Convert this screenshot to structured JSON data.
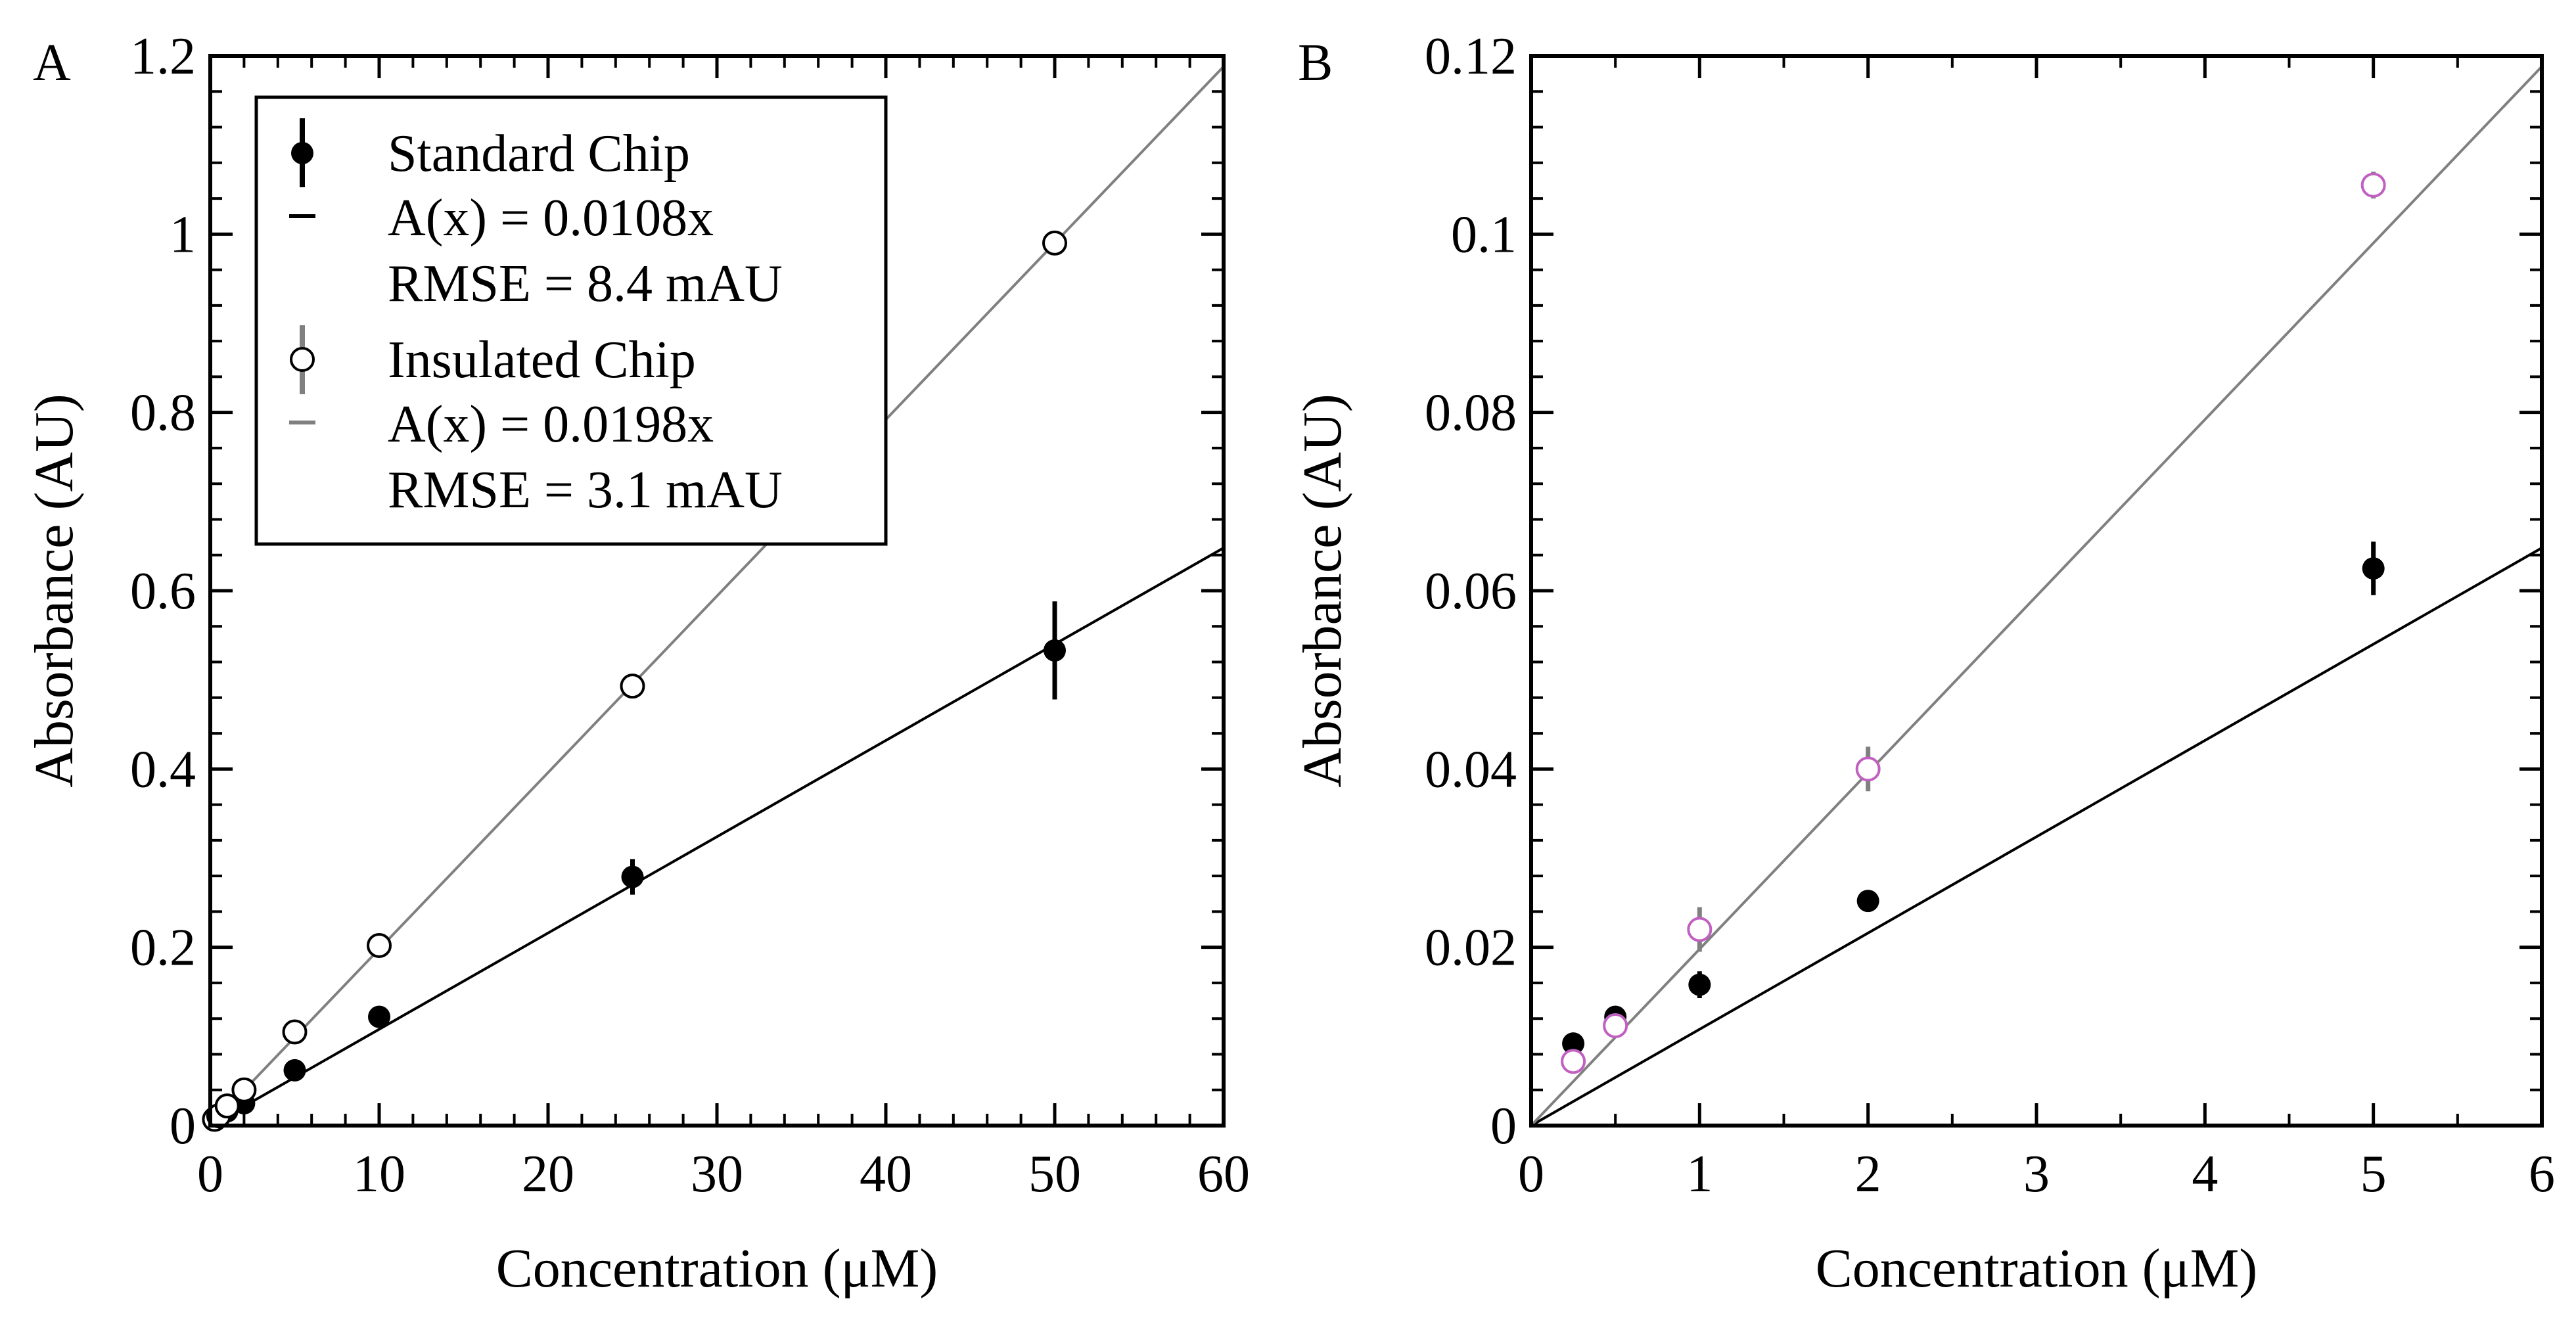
{
  "chart_data": [
    {
      "panel": "A",
      "type": "scatter",
      "xlabel": "Concentration (μM)",
      "ylabel": "Absorbance (AU)",
      "xlim": [
        0,
        60
      ],
      "ylim": [
        0,
        1.2
      ],
      "x_ticks": [
        0,
        10,
        20,
        30,
        40,
        50,
        60
      ],
      "y_ticks": [
        0,
        0.2,
        0.4,
        0.6,
        0.8,
        1.0,
        1.2
      ],
      "x_tick_labels": [
        "0",
        "10",
        "20",
        "30",
        "40",
        "50",
        "60"
      ],
      "y_tick_labels": [
        "0",
        "0.2",
        "0.4",
        "0.6",
        "0.8",
        "1",
        "1.2"
      ],
      "legend_position": "top-left",
      "series": [
        {
          "name": "Standard Chip",
          "marker": "filled-circle",
          "color": "#000000",
          "error_color": "#000000",
          "x": [
            0.25,
            0.5,
            1,
            2,
            5,
            10,
            25,
            50
          ],
          "y": [
            0.009,
            0.012,
            0.016,
            0.025,
            0.062,
            0.122,
            0.279,
            0.533
          ],
          "err": [
            0.002,
            0.002,
            0.003,
            0.003,
            0.004,
            0.006,
            0.02,
            0.055
          ],
          "fit_label": "A(x) = 0.0108x",
          "fit_slope": 0.0108,
          "fit_color": "#000000",
          "rmse_label": "RMSE = 8.4 mAU"
        },
        {
          "name": "Insulated Chip",
          "marker": "open-circle",
          "color": "#000000",
          "error_color": "#808080",
          "x": [
            0.25,
            0.5,
            1,
            2,
            5,
            10,
            25,
            50
          ],
          "y": [
            0.007,
            0.011,
            0.022,
            0.04,
            0.105,
            0.202,
            0.493,
            0.99
          ],
          "err": [
            0.001,
            0.001,
            0.003,
            0.003,
            0.004,
            0.004,
            0.005,
            0.005
          ],
          "fit_label": "A(x) = 0.0198x",
          "fit_slope": 0.0198,
          "fit_color": "#808080",
          "rmse_label": "RMSE = 3.1 mAU"
        }
      ]
    },
    {
      "panel": "B",
      "type": "scatter",
      "xlabel": "Concentration (μM)",
      "ylabel": "Absorbance (AU)",
      "xlim": [
        0,
        6
      ],
      "ylim": [
        0,
        0.12
      ],
      "x_ticks": [
        0,
        1,
        2,
        3,
        4,
        5,
        6
      ],
      "y_ticks": [
        0,
        0.02,
        0.04,
        0.06,
        0.08,
        0.1,
        0.12
      ],
      "x_tick_labels": [
        "0",
        "1",
        "2",
        "3",
        "4",
        "5",
        "6"
      ],
      "y_tick_labels": [
        "0",
        "0.02",
        "0.04",
        "0.06",
        "0.08",
        "0.1",
        "0.12"
      ],
      "series": [
        {
          "name": "Standard Chip",
          "marker": "filled-circle",
          "color": "#000000",
          "error_color": "#000000",
          "x": [
            0.25,
            0.5,
            1,
            2,
            5
          ],
          "y": [
            0.0092,
            0.0122,
            0.0158,
            0.0252,
            0.0625
          ],
          "err": [
            0.0008,
            0.0008,
            0.0015,
            0.0008,
            0.003
          ],
          "fit_slope": 0.0108,
          "fit_color": "#000000"
        },
        {
          "name": "Insulated Chip",
          "marker": "open-circle",
          "color": "#c060c0",
          "error_color": "#808080",
          "x": [
            0.25,
            0.5,
            1,
            2,
            5
          ],
          "y": [
            0.0072,
            0.0112,
            0.022,
            0.04,
            0.1055
          ],
          "err": [
            0.0008,
            0.0008,
            0.0025,
            0.0025,
            0.0015
          ],
          "fit_slope": 0.0198,
          "fit_color": "#808080"
        }
      ]
    }
  ]
}
